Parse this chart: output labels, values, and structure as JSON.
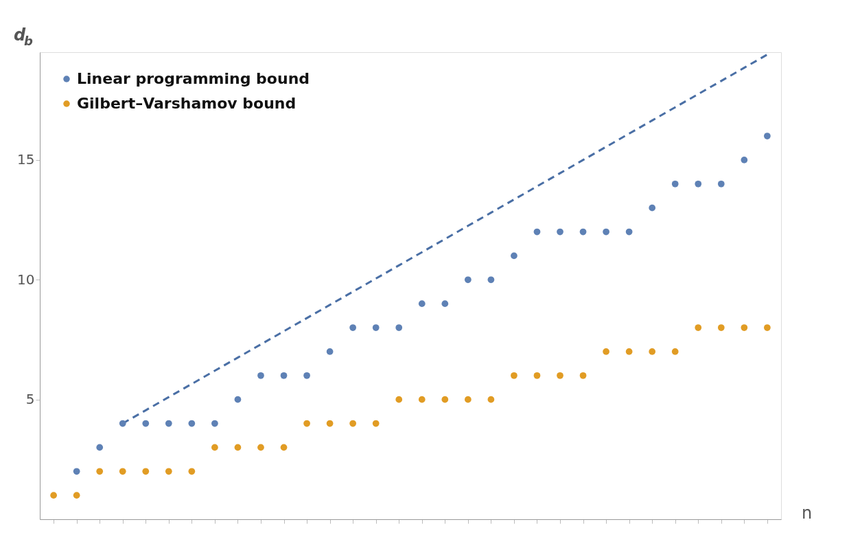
{
  "chart_data": {
    "type": "scatter",
    "ylabel": "d$_{b}$",
    "xlabel": "n",
    "categories": [
      null,
      null,
      null,
      null,
      null,
      null,
      null,
      null,
      null,
      null,
      null,
      null,
      null,
      null,
      null,
      null,
      null,
      null,
      null,
      null,
      null,
      null,
      null,
      null,
      null,
      null,
      null,
      null,
      null,
      null,
      null,
      null
    ],
    "series": [
      {
        "name": "Linear programming bound",
        "color": "#5e81b5",
        "values": [
          null,
          2,
          3,
          4,
          4,
          4,
          4,
          4,
          5,
          6,
          6,
          6,
          7,
          8,
          8,
          8,
          9,
          9,
          10,
          10,
          11,
          12,
          12,
          12,
          12,
          12,
          13,
          14,
          14,
          14,
          15,
          16
        ]
      },
      {
        "name": "Gilbert–Varshamov bound",
        "color": "#e19c24",
        "values": [
          1,
          1,
          2,
          2,
          2,
          2,
          2,
          3,
          3,
          3,
          3,
          4,
          4,
          4,
          4,
          5,
          5,
          5,
          5,
          5,
          6,
          6,
          6,
          6,
          7,
          7,
          7,
          7,
          8,
          8,
          8,
          8
        ]
      },
      {
        "type": "line",
        "line_style": "dashed",
        "marker": "none",
        "color": "#4a6fa5",
        "values": [
          null,
          null,
          null,
          4,
          4.55,
          5.1,
          5.65,
          6.2,
          6.75,
          7.3,
          7.85,
          8.4,
          8.95,
          9.5,
          10.05,
          10.6,
          11.15,
          11.7,
          12.25,
          12.8,
          13.35,
          13.9,
          14.45,
          15,
          15.55,
          16.1,
          16.65,
          17.2,
          17.75,
          18.3,
          18.85,
          19.4
        ]
      }
    ],
    "marker": "circle",
    "ylim": [
      0,
      19.5
    ],
    "yticks": [
      5,
      10,
      15
    ],
    "tick_labels": "y",
    "grid": false,
    "legend": "top left"
  }
}
